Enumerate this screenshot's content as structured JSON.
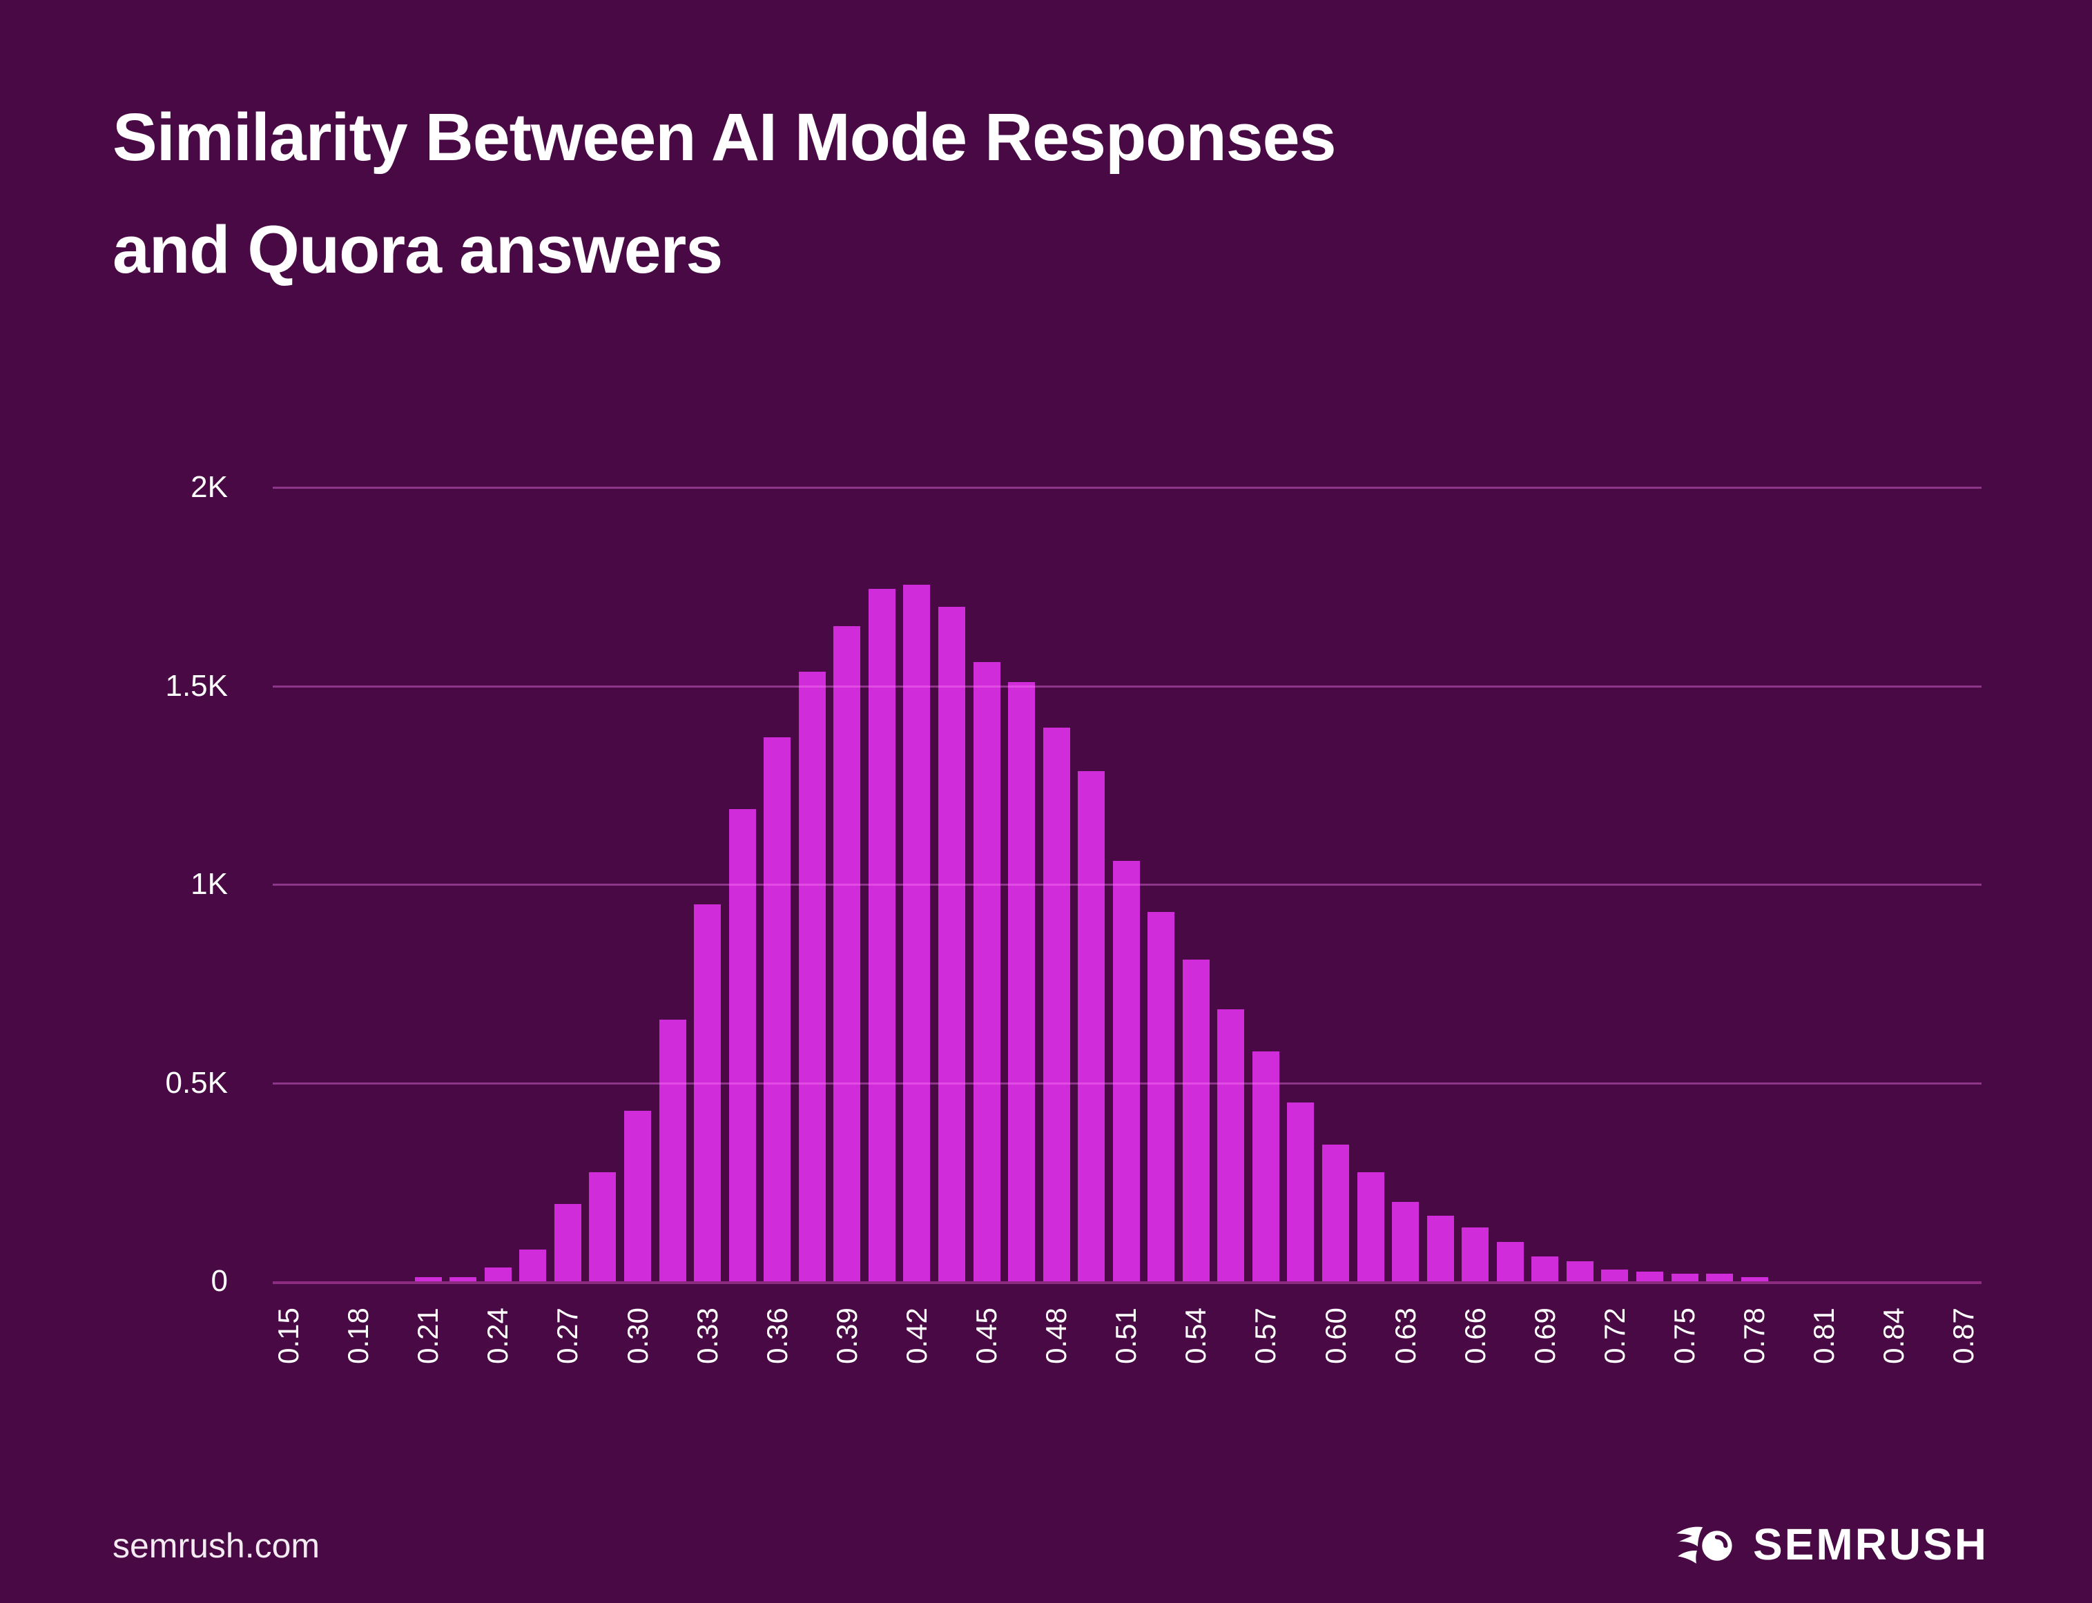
{
  "title": {
    "line1": "Similarity Between AI Mode Responses",
    "line2": "and Quora answers"
  },
  "footer": {
    "site": "semrush.com",
    "brand": "SEMRUSH",
    "logo_icon": "semrush-comet-icon"
  },
  "colors": {
    "background": "#490944",
    "bar": "#d12cd9",
    "gridline_rgba": "rgba(255,130,250,0.38)",
    "axis_line": "#8c2b80",
    "text": "#ffffff"
  },
  "chart_data": {
    "type": "bar",
    "title": "Similarity Between AI Mode Responses and Quora answers",
    "xlabel": "",
    "ylabel": "",
    "legend": "none",
    "grid": "horizontal",
    "ylim": [
      0,
      2000
    ],
    "bin_width": 0.015,
    "y_ticks": [
      {
        "label": "2K",
        "value": 2000
      },
      {
        "label": "1.5K",
        "value": 1500
      },
      {
        "label": "1K",
        "value": 1000
      },
      {
        "label": "0.5K",
        "value": 500
      },
      {
        "label": "0",
        "value": 0
      }
    ],
    "x_tick_labels": [
      "0.15",
      "0.18",
      "0.21",
      "0.24",
      "0.27",
      "0.30",
      "0.33",
      "0.36",
      "0.39",
      "0.42",
      "0.45",
      "0.48",
      "0.51",
      "0.54",
      "0.57",
      "0.60",
      "0.63",
      "0.66",
      "0.69",
      "0.72",
      "0.75",
      "0.78",
      "0.81",
      "0.84",
      "0.87"
    ],
    "x_tick_start": 0.15,
    "x_tick_step": 0.03,
    "x": [
      0.21,
      0.225,
      0.24,
      0.255,
      0.27,
      0.285,
      0.3,
      0.315,
      0.33,
      0.345,
      0.36,
      0.375,
      0.39,
      0.405,
      0.42,
      0.435,
      0.45,
      0.465,
      0.48,
      0.495,
      0.51,
      0.525,
      0.54,
      0.555,
      0.57,
      0.585,
      0.6,
      0.615,
      0.63,
      0.645,
      0.66,
      0.675,
      0.69,
      0.705,
      0.72,
      0.735,
      0.75,
      0.765,
      0.78
    ],
    "values": [
      10,
      10,
      35,
      80,
      195,
      275,
      430,
      660,
      950,
      1190,
      1370,
      1535,
      1650,
      1745,
      1755,
      1700,
      1560,
      1510,
      1395,
      1285,
      1060,
      930,
      810,
      685,
      580,
      450,
      345,
      275,
      200,
      165,
      135,
      100,
      62,
      50,
      30,
      25,
      20,
      20,
      10
    ]
  }
}
